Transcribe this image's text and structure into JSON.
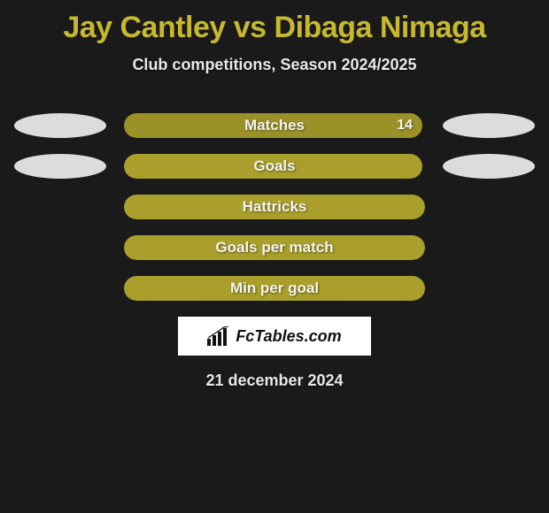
{
  "comparison": {
    "title": "Jay Cantley vs Dibaga Nimaga",
    "subtitle": "Club competitions, Season 2024/2025",
    "date": "21 december 2024",
    "background_color": "#1a1a1a",
    "title_color": "#c7b82e",
    "text_color": "#e8e8e8",
    "pill_color": "#dcdcdc",
    "stats": [
      {
        "label": "Matches",
        "value_text": "14",
        "fill_pct": 99,
        "fill_color": "#9b9227",
        "show_left_pill": true,
        "show_right_pill": true,
        "show_value": true
      },
      {
        "label": "Goals",
        "value_text": "",
        "fill_pct": 99,
        "fill_color": "#a99f2a",
        "show_left_pill": true,
        "show_right_pill": true,
        "show_value": false
      },
      {
        "label": "Hattricks",
        "value_text": "",
        "fill_pct": 100,
        "fill_color": "#a99f2a",
        "show_left_pill": false,
        "show_right_pill": false,
        "show_value": false
      },
      {
        "label": "Goals per match",
        "value_text": "",
        "fill_pct": 100,
        "fill_color": "#a99f2a",
        "show_left_pill": false,
        "show_right_pill": false,
        "show_value": false
      },
      {
        "label": "Min per goal",
        "value_text": "",
        "fill_pct": 100,
        "fill_color": "#a99f2a",
        "show_left_pill": false,
        "show_right_pill": false,
        "show_value": false
      }
    ],
    "logo_text": "FcTables.com"
  }
}
